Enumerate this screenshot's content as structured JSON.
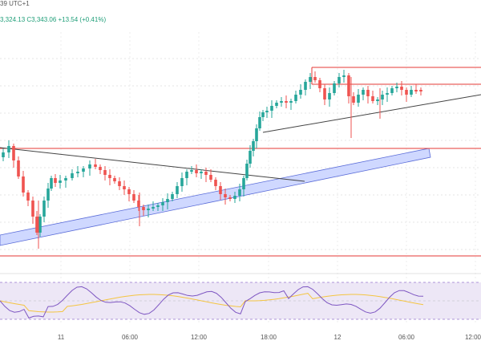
{
  "header": {
    "line1": "39 UTC+1",
    "line2": "3,324.13  C3,343.06  +13.54 (+0.41%)"
  },
  "x_axis": {
    "ticks": [
      "11",
      "06:00",
      "12:00",
      "18:00",
      "12",
      "06:00",
      "12:00"
    ]
  },
  "colors": {
    "up": "#26a69a",
    "down": "#ef5350",
    "level_line": "#e53935",
    "channel_fill": "#cfd8ff",
    "channel_edge": "#5a6cd8",
    "trend_line": "#444444",
    "rsi_fill": "#ede7f6",
    "rsi_border": "#9575cd",
    "rsi_line": "#7e57c2",
    "rsi_ma": "#f4c542"
  },
  "chart_data": {
    "type": "candlestick",
    "indicator": "RSI with moving average"
  }
}
